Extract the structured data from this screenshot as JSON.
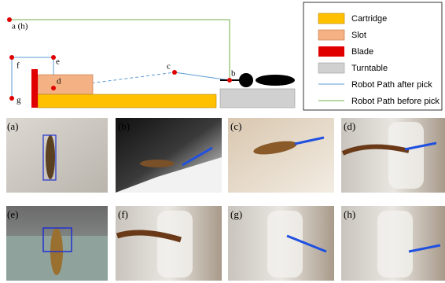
{
  "diagram": {
    "points": [
      "a (h)",
      "b",
      "c",
      "d",
      "e",
      "f",
      "g"
    ]
  },
  "legend": {
    "items": [
      "Cartridge",
      "Slot",
      "Blade",
      "Turntable",
      "Robot Path after pick",
      "Robot Path before pick"
    ]
  },
  "photos": {
    "labels": [
      "(a)",
      "(b)",
      "(c)",
      "(d)",
      "(e)",
      "(f)",
      "(g)",
      "(h)"
    ]
  }
}
